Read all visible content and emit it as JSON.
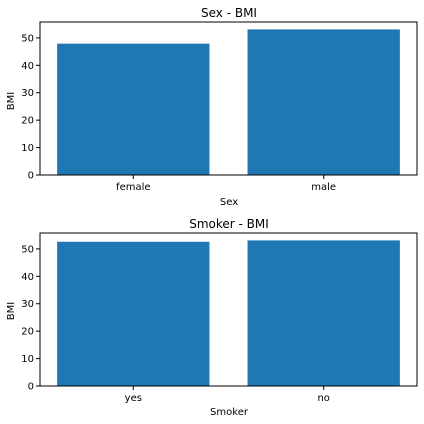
{
  "chart_data": [
    {
      "type": "bar",
      "title": "Sex - BMI",
      "xlabel": "Sex",
      "ylabel": "BMI",
      "categories": [
        "female",
        "male"
      ],
      "values": [
        47.9,
        53.1
      ],
      "ylim": [
        0,
        55.8
      ],
      "yticks": [
        0,
        10,
        20,
        30,
        40,
        50
      ],
      "bar_color": "#1f77b4",
      "grid": false
    },
    {
      "type": "bar",
      "title": "Smoker - BMI",
      "xlabel": "Smoker",
      "ylabel": "BMI",
      "categories": [
        "yes",
        "no"
      ],
      "values": [
        52.6,
        53.1
      ],
      "ylim": [
        0,
        55.8
      ],
      "yticks": [
        0,
        10,
        20,
        30,
        40,
        50
      ],
      "bar_color": "#1f77b4",
      "grid": false
    }
  ]
}
